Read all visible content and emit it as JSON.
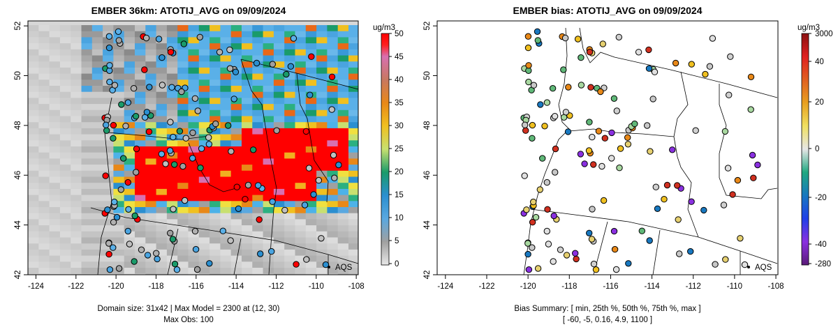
{
  "chart_data": [
    {
      "type": "heatmap",
      "title": "EMBER 36km: ATOTIJ_AVG on 09/09/2024",
      "x_ticks": [
        "-124",
        "-122",
        "-120",
        "-118",
        "-116",
        "-114",
        "-112",
        "-110",
        "-108"
      ],
      "y_ticks": [
        "42",
        "44",
        "46",
        "48",
        "50",
        "52"
      ],
      "xlim": [
        -124.4,
        -107.9
      ],
      "ylim": [
        42.0,
        52.2
      ],
      "colorbar": {
        "label": "ug/m3",
        "ticks": [
          "0",
          "5",
          "10",
          "15",
          "20",
          "25",
          "30",
          "35",
          "40",
          "45",
          "50"
        ],
        "range": [
          0,
          50
        ]
      },
      "legend_label": "AQS",
      "footer": [
        "Domain size: 31x42 | Max Model = 2300 at (12, 30)",
        "Max Obs: 100"
      ]
    },
    {
      "type": "scatter",
      "title": "EMBER bias: ATOTIJ_AVG on 09/09/2024",
      "x_ticks": [
        "-124",
        "-122",
        "-120",
        "-118",
        "-116",
        "-114",
        "-112",
        "-110",
        "-108"
      ],
      "y_ticks": [
        "42",
        "44",
        "46",
        "48",
        "50",
        "52"
      ],
      "xlim": [
        -124.4,
        -107.9
      ],
      "ylim": [
        42.0,
        52.2
      ],
      "colorbar": {
        "label": "ug/m3",
        "ticks": [
          "3000",
          "40",
          "20",
          "0",
          "-20",
          "-40",
          "-280"
        ]
      },
      "legend_label": "AQS",
      "footer": [
        "Bias Summary: [ min, 25th %, 50th %, 75th %, max ]",
        "[ -60,   -5,   0.16,   4.9,   1100 ]"
      ]
    }
  ]
}
